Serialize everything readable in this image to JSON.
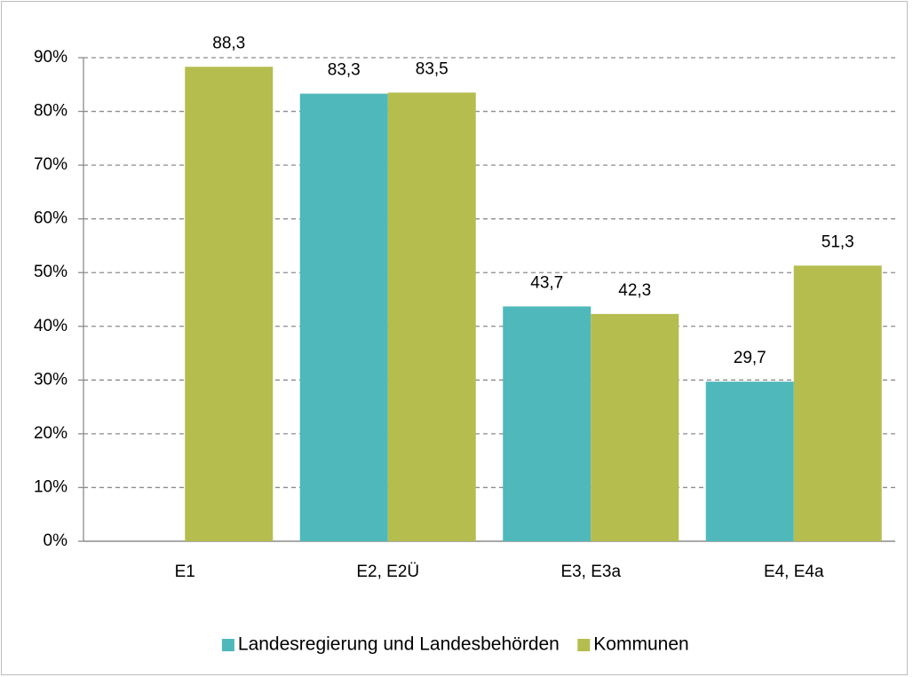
{
  "chart_data": {
    "type": "bar",
    "categories": [
      "E1",
      "E2, E2Ü",
      "E3, E3a",
      "E4, E4a"
    ],
    "series": [
      {
        "name": "Landesregierung und Landesbehörden",
        "color": "#4fb8bb",
        "values": [
          null,
          83.3,
          43.7,
          29.7
        ],
        "value_labels": [
          null,
          "83,3",
          "43,7",
          "29,7"
        ]
      },
      {
        "name": "Kommunen",
        "color": "#b5bd4e",
        "values": [
          88.3,
          83.5,
          42.3,
          51.3
        ],
        "value_labels": [
          "88,3",
          "83,5",
          "42,3",
          "51,3"
        ]
      }
    ],
    "ylim": [
      0,
      90
    ],
    "yticks": [
      {
        "value": 0,
        "label": "0%"
      },
      {
        "value": 10,
        "label": "10%"
      },
      {
        "value": 20,
        "label": "20%"
      },
      {
        "value": 30,
        "label": "30%"
      },
      {
        "value": 40,
        "label": "40%"
      },
      {
        "value": 50,
        "label": "50%"
      },
      {
        "value": 60,
        "label": "60%"
      },
      {
        "value": 70,
        "label": "70%"
      },
      {
        "value": 80,
        "label": "80%"
      },
      {
        "value": 90,
        "label": "90%"
      }
    ],
    "grid": true,
    "legend": "bottom"
  }
}
